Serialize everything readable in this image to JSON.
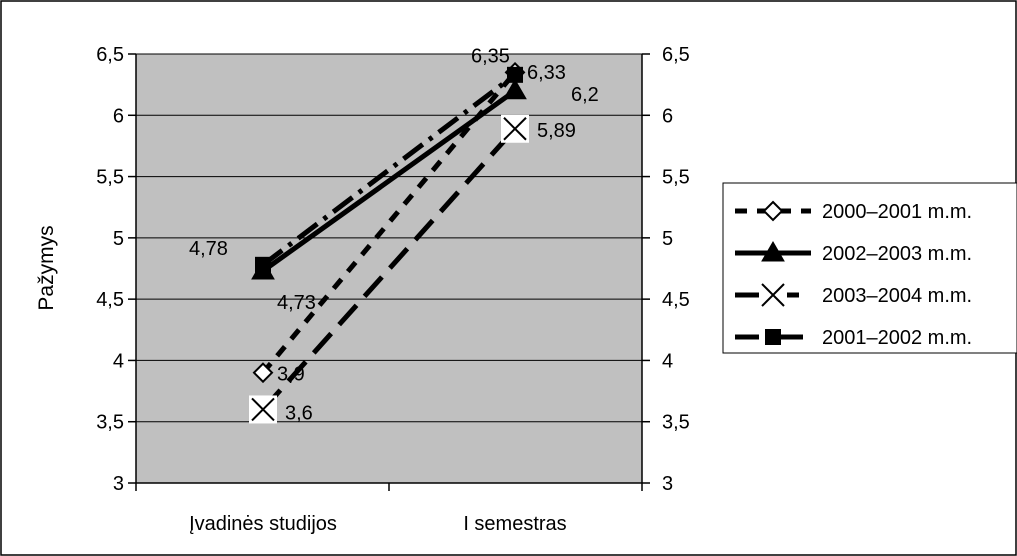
{
  "chart_data": {
    "type": "line",
    "title": "",
    "xlabel": "",
    "ylabel": "Pažymys",
    "ylim": [
      3,
      6.5
    ],
    "yticks": [
      "3",
      "3,5",
      "4",
      "4,5",
      "5",
      "5,5",
      "6",
      "6,5"
    ],
    "categories": [
      "Įvadinės studijos",
      "I semestras"
    ],
    "grid": true,
    "legend_position": "right",
    "series": [
      {
        "name": "2000–2001 m.m.",
        "values": [
          3.9,
          6.35
        ],
        "labels": [
          "3,9",
          "6,35"
        ],
        "marker": "diamond",
        "line_style": "dashed"
      },
      {
        "name": "2002–2003 m.m.",
        "values": [
          4.73,
          6.2
        ],
        "labels": [
          "4,73",
          "6,2"
        ],
        "marker": "triangle",
        "line_style": "solid"
      },
      {
        "name": "2003–2004 m.m.",
        "values": [
          3.6,
          5.89
        ],
        "labels": [
          "3,6",
          "5,89"
        ],
        "marker": "x",
        "line_style": "long-dash"
      },
      {
        "name": "2001–2002 m.m.",
        "values": [
          4.78,
          6.33
        ],
        "labels": [
          "4,78",
          "6,33"
        ],
        "marker": "square",
        "line_style": "dash-dot"
      }
    ],
    "colors": {
      "plot_background": "#c0c0c0",
      "line": "#000000",
      "gridline": "#000000"
    }
  }
}
